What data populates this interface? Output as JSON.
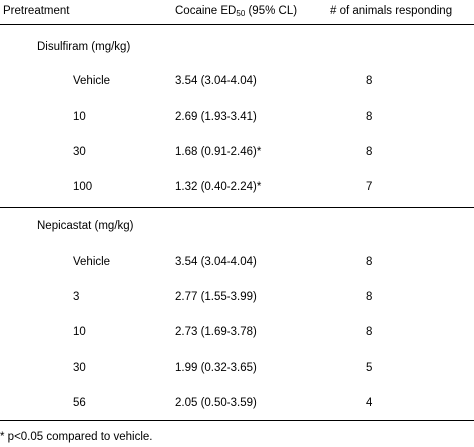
{
  "header": {
    "pretreatment": "Pretreatment",
    "ed50_prefix": "Cocaine ED",
    "ed50_sub": "50",
    "ed50_suffix": " (95% CL)",
    "responding": "# of animals responding"
  },
  "groups": [
    {
      "label": "Disulfiram (mg/kg)",
      "rows": [
        {
          "dose": "Vehicle",
          "ed50": "3.54 (3.04-4.04)",
          "n": "8"
        },
        {
          "dose": "10",
          "ed50": "2.69 (1.93-3.41)",
          "n": "8"
        },
        {
          "dose": "30",
          "ed50": "1.68 (0.91-2.46)*",
          "n": "8"
        },
        {
          "dose": "100",
          "ed50": "1.32 (0.40-2.24)*",
          "n": "7"
        }
      ]
    },
    {
      "label": "Nepicastat (mg/kg)",
      "rows": [
        {
          "dose": "Vehicle",
          "ed50": "3.54 (3.04-4.04)",
          "n": "8"
        },
        {
          "dose": "3",
          "ed50": "2.77 (1.55-3.99)",
          "n": "8"
        },
        {
          "dose": "10",
          "ed50": "2.73 (1.69-3.78)",
          "n": "8"
        },
        {
          "dose": "30",
          "ed50": "1.99 (0.32-3.65)",
          "n": "5"
        },
        {
          "dose": "56",
          "ed50": "2.05 (0.50-3.59)",
          "n": "4"
        }
      ]
    }
  ],
  "footnote": "* p<0.05 compared to vehicle."
}
